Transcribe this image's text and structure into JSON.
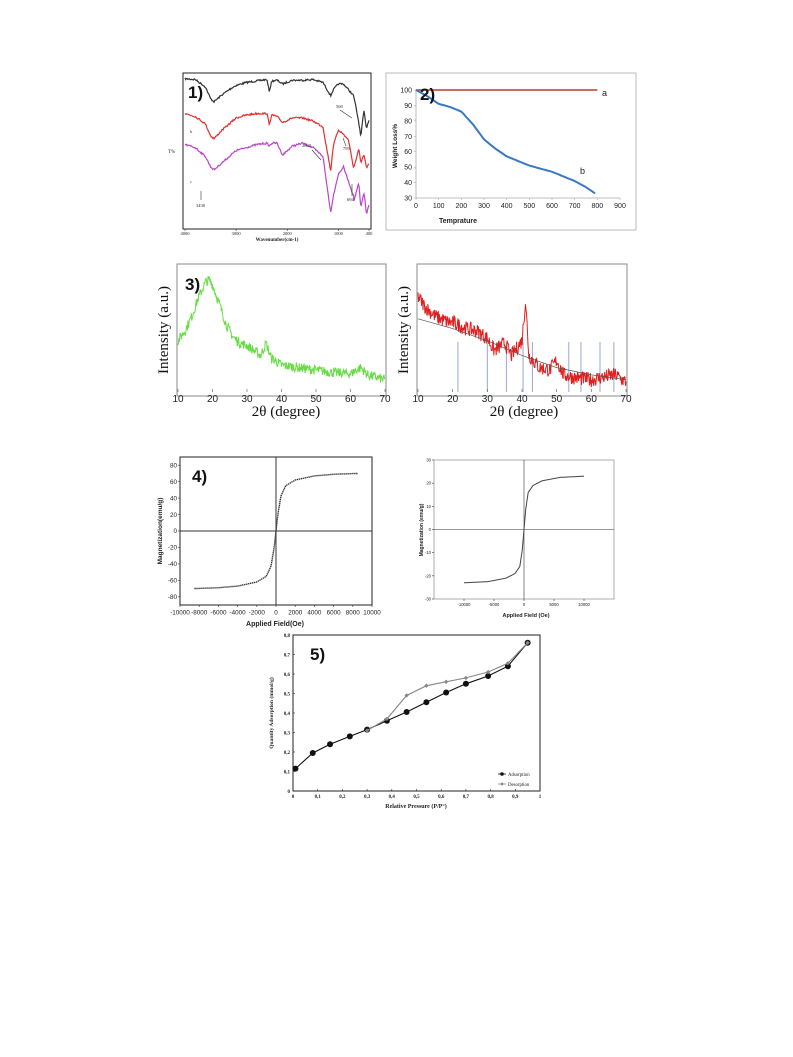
{
  "chart_data": [
    {
      "id": "ftir",
      "type": "line",
      "panel_label": "1)",
      "xlabel": "Wavenumber(cm-1)",
      "ylabel": "T%",
      "xlim": [
        4000,
        400
      ],
      "x_ticks": [
        "4000",
        "3000",
        "2000",
        "1000",
        "400"
      ],
      "series": [
        {
          "name": "",
          "color": "#333333",
          "x": [
            4000,
            3800,
            3600,
            3500,
            3430,
            3300,
            3100,
            3000,
            2800,
            2600,
            2400,
            2350,
            2300,
            2200,
            2090,
            1900,
            1700,
            1500,
            1300,
            1150,
            1100,
            1000,
            900,
            800,
            700,
            600,
            560,
            500,
            450,
            400
          ],
          "y": [
            0.5,
            1,
            6,
            14,
            16,
            12,
            7,
            5,
            3,
            2,
            1,
            9,
            2,
            1.5,
            4,
            1.5,
            1.5,
            1,
            3,
            12,
            8,
            4,
            4,
            8,
            12,
            30,
            40,
            22,
            34,
            28
          ]
        },
        {
          "name": "",
          "color": "#e03030",
          "label": "b",
          "x": [
            4000,
            3800,
            3600,
            3500,
            3430,
            3300,
            3100,
            3000,
            2800,
            2600,
            2400,
            2350,
            2300,
            2200,
            2090,
            1900,
            1700,
            1500,
            1300,
            1150,
            1100,
            1000,
            900,
            800,
            700,
            600,
            560,
            500,
            450,
            400
          ],
          "y": [
            24,
            26,
            31,
            39,
            41,
            36,
            30,
            27,
            25,
            24,
            24,
            31,
            25,
            26,
            30,
            27,
            27,
            29,
            33,
            63,
            46,
            35,
            38,
            42,
            61,
            48,
            57,
            52,
            61,
            58
          ]
        },
        {
          "name": "",
          "color": "#bb44cc",
          "label": "c",
          "x": [
            4000,
            3800,
            3600,
            3500,
            3430,
            3300,
            3100,
            3000,
            2800,
            2600,
            2400,
            2350,
            2300,
            2200,
            2090,
            1900,
            1700,
            1500,
            1300,
            1150,
            1100,
            1000,
            900,
            800,
            700,
            694,
            600,
            560,
            500,
            450,
            400
          ],
          "y": [
            45,
            47,
            53,
            60,
            62,
            58,
            52,
            49,
            47,
            45,
            44,
            46,
            44,
            44,
            52,
            46,
            44,
            47,
            53,
            91,
            80,
            65,
            60,
            70,
            80,
            83,
            71,
            88,
            77,
            92,
            86
          ]
        }
      ],
      "annotations": [
        "560",
        "795",
        "2090",
        "3430",
        "694",
        "b",
        "c"
      ]
    },
    {
      "id": "tga",
      "type": "line",
      "panel_label": "2)",
      "xlabel": "Temprature",
      "ylabel": "Weight Loss%",
      "xlim": [
        0,
        900
      ],
      "ylim": [
        30,
        100
      ],
      "x_ticks": [
        "0",
        "100",
        "200",
        "300",
        "400",
        "500",
        "600",
        "700",
        "800",
        "900"
      ],
      "y_ticks": [
        "30",
        "40",
        "50",
        "60",
        "70",
        "80",
        "90",
        "100"
      ],
      "series": [
        {
          "name": "a",
          "color": "#c0392b",
          "x": [
            0,
            800
          ],
          "y": [
            100,
            100
          ]
        },
        {
          "name": "b",
          "color": "#3b78c4",
          "x": [
            0,
            50,
            100,
            150,
            200,
            250,
            300,
            350,
            400,
            450,
            500,
            550,
            600,
            650,
            700,
            750,
            790
          ],
          "y": [
            100,
            96,
            91,
            89,
            86,
            78,
            68,
            62,
            57,
            54,
            51,
            49,
            47,
            44,
            41,
            37,
            33
          ]
        }
      ]
    },
    {
      "id": "xrd-green",
      "type": "line",
      "panel_label": "3)",
      "xlabel": "2θ (degree)",
      "ylabel": "Intensity (a.u.)",
      "xlim": [
        10,
        70
      ],
      "x_ticks": [
        "10",
        "20",
        "30",
        "40",
        "50",
        "60",
        "70"
      ],
      "series": [
        {
          "name": "",
          "color": "#66dd44",
          "x": [
            10,
            12,
            14,
            16,
            18,
            19,
            20,
            22,
            24,
            26,
            28,
            30,
            32,
            34,
            35.5,
            37,
            40,
            45,
            50,
            55,
            60,
            63,
            65,
            70
          ],
          "y": [
            0.42,
            0.5,
            0.62,
            0.78,
            0.9,
            0.92,
            0.88,
            0.72,
            0.55,
            0.45,
            0.4,
            0.38,
            0.34,
            0.3,
            0.4,
            0.28,
            0.22,
            0.2,
            0.18,
            0.16,
            0.15,
            0.2,
            0.14,
            0.1
          ]
        }
      ]
    },
    {
      "id": "xrd-red",
      "type": "line",
      "panel_label": "",
      "xlabel": "2θ (degree)",
      "ylabel": "Intensity (a.u.)",
      "xlim": [
        10,
        70
      ],
      "x_ticks": [
        "10",
        "20",
        "30",
        "40",
        "50",
        "60",
        "70"
      ],
      "series": [
        {
          "name": "",
          "color": "#e02020",
          "x": [
            10,
            12,
            15,
            18,
            21,
            24,
            27,
            30,
            32,
            35,
            37,
            40,
            41,
            42,
            45,
            48,
            50,
            52,
            55,
            60,
            63,
            67,
            70
          ],
          "y": [
            0.78,
            0.7,
            0.62,
            0.58,
            0.56,
            0.52,
            0.5,
            0.44,
            0.34,
            0.4,
            0.3,
            0.42,
            0.75,
            0.3,
            0.2,
            0.18,
            0.26,
            0.14,
            0.12,
            0.1,
            0.12,
            0.14,
            0.08
          ]
        }
      ],
      "reference_lines_x": [
        21.5,
        30,
        35.5,
        40.3,
        43,
        53.5,
        57,
        62.5,
        66.5
      ]
    },
    {
      "id": "vsm-left",
      "type": "line",
      "panel_label": "4)",
      "xlabel": "Applied Field(Oe)",
      "ylabel": "Magnetization(emu/g)",
      "xlim": [
        -10000,
        10000
      ],
      "ylim": [
        -90,
        90
      ],
      "x_ticks": [
        "-10000",
        "-8000",
        "-6000",
        "-4000",
        "-2000",
        "0",
        "2000",
        "4000",
        "6000",
        "8000",
        "10000"
      ],
      "y_ticks": [
        "-80",
        "-60",
        "-40",
        "-20",
        "0",
        "20",
        "40",
        "60",
        "80"
      ],
      "series": [
        {
          "name": "",
          "color": "#333333",
          "x": [
            -8500,
            -6000,
            -4000,
            -2000,
            -1000,
            -500,
            -200,
            0,
            200,
            500,
            1000,
            2000,
            4000,
            6000,
            8500
          ],
          "y": [
            -70,
            -69,
            -67,
            -62,
            -55,
            -42,
            -20,
            0,
            20,
            42,
            55,
            62,
            67,
            69,
            70
          ]
        }
      ]
    },
    {
      "id": "vsm-right",
      "type": "line",
      "panel_label": "",
      "xlabel": "Applied Field (Oe)",
      "ylabel": "Magnetization (emu/g)",
      "xlim": [
        -15000,
        15000
      ],
      "ylim": [
        -30,
        30
      ],
      "x_ticks": [
        "-10000",
        "-5000",
        "0",
        "5000",
        "10000"
      ],
      "y_ticks": [
        "30",
        "20",
        "10",
        "0",
        "-10",
        "-20",
        "-30"
      ],
      "series": [
        {
          "name": "",
          "color": "#444444",
          "x": [
            -10000,
            -6000,
            -3000,
            -1500,
            -700,
            -300,
            0,
            300,
            700,
            1500,
            3000,
            6000,
            10000
          ],
          "y": [
            -23,
            -22.5,
            -21,
            -19,
            -16,
            -9,
            0,
            9,
            16,
            19,
            21,
            22.5,
            23
          ]
        }
      ]
    },
    {
      "id": "bet",
      "type": "line",
      "panel_label": "5)",
      "xlabel": "Relative Pressure (P/P°)",
      "ylabel": "Quantity Adsorption (mmol/g)",
      "xlim": [
        0,
        1
      ],
      "ylim": [
        0,
        0.8
      ],
      "x_ticks": [
        "0",
        "0,1",
        "0,2",
        "0,3",
        "0,4",
        "0,5",
        "0,6",
        "0,7",
        "0,8",
        "0,9",
        "1"
      ],
      "y_ticks": [
        "0",
        "0,1",
        "0,2",
        "0,3",
        "0,4",
        "0,5",
        "0,6",
        "0,7",
        "0,8"
      ],
      "legend": "bottom-right",
      "series": [
        {
          "name": "Adsorption",
          "color": "#111111",
          "x": [
            0.01,
            0.08,
            0.15,
            0.23,
            0.3,
            0.38,
            0.46,
            0.54,
            0.62,
            0.7,
            0.79,
            0.87,
            0.95
          ],
          "y": [
            0.115,
            0.195,
            0.24,
            0.28,
            0.315,
            0.36,
            0.405,
            0.455,
            0.505,
            0.55,
            0.59,
            0.64,
            0.76
          ]
        },
        {
          "name": "Desorption",
          "color": "#888888",
          "x": [
            0.3,
            0.38,
            0.46,
            0.54,
            0.62,
            0.7,
            0.79,
            0.87,
            0.95
          ],
          "y": [
            0.31,
            0.37,
            0.49,
            0.54,
            0.56,
            0.58,
            0.61,
            0.655,
            0.76
          ]
        }
      ]
    }
  ]
}
